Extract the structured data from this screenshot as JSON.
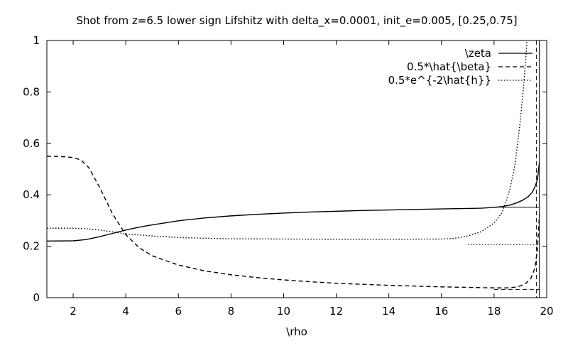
{
  "chart_data": {
    "type": "line",
    "title": "Shot from z=6.5 lower sign Lifshitz with delta_x=0.0001, init_e=0.005, [0.25,0.75]",
    "xlabel": "\\rho",
    "ylabel": "",
    "xlim": [
      1,
      20
    ],
    "ylim": [
      0,
      1
    ],
    "xticks": [
      "2",
      "4",
      "6",
      "8",
      "10",
      "12",
      "14",
      "16",
      "18",
      "20"
    ],
    "yticks": [
      "0",
      "0.2",
      "0.4",
      "0.6",
      "0.8",
      "1"
    ],
    "grid": false,
    "legend_position": "top-right",
    "series": [
      {
        "name": "\\zeta",
        "style": "solid",
        "x": [
          1.0,
          2.0,
          2.5,
          3.0,
          3.5,
          4.0,
          4.5,
          5.0,
          6.0,
          7.0,
          8.0,
          9.0,
          10.0,
          11.0,
          12.0,
          13.0,
          14.0,
          15.0,
          16.0,
          17.0,
          17.5,
          18.0,
          18.3,
          18.6,
          18.9,
          19.1,
          19.3,
          19.45,
          19.55,
          19.65,
          19.72
        ],
        "y": [
          0.22,
          0.221,
          0.226,
          0.237,
          0.25,
          0.263,
          0.274,
          0.283,
          0.299,
          0.31,
          0.318,
          0.324,
          0.329,
          0.333,
          0.336,
          0.339,
          0.341,
          0.343,
          0.345,
          0.347,
          0.348,
          0.351,
          0.354,
          0.36,
          0.37,
          0.38,
          0.393,
          0.41,
          0.43,
          0.46,
          0.525
        ]
      },
      {
        "name": "0.5*\\hat{\\beta}",
        "style": "dashed",
        "x": [
          1.0,
          1.5,
          2.0,
          2.3,
          2.6,
          3.0,
          3.5,
          4.0,
          4.5,
          5.0,
          6.0,
          7.0,
          8.0,
          9.0,
          10.0,
          11.0,
          12.0,
          13.0,
          14.0,
          15.0,
          16.0,
          17.0,
          18.0,
          18.5,
          18.9,
          19.2,
          19.4,
          19.55,
          19.65,
          19.72
        ],
        "y": [
          0.55,
          0.549,
          0.545,
          0.535,
          0.505,
          0.43,
          0.325,
          0.245,
          0.195,
          0.163,
          0.127,
          0.104,
          0.089,
          0.078,
          0.069,
          0.062,
          0.056,
          0.052,
          0.048,
          0.045,
          0.042,
          0.04,
          0.038,
          0.038,
          0.042,
          0.055,
          0.075,
          0.115,
          0.19,
          0.32
        ]
      },
      {
        "name": "0.5*e^{-2\\hat{h}}",
        "style": "dotted",
        "x": [
          1.0,
          2.0,
          2.5,
          3.0,
          3.5,
          4.0,
          5.0,
          6.0,
          7.0,
          8.0,
          10.0,
          12.0,
          14.0,
          16.0,
          16.5,
          17.0,
          17.5,
          18.0,
          18.3,
          18.6,
          18.8,
          19.0,
          19.1,
          19.2,
          19.25
        ],
        "y": [
          0.27,
          0.27,
          0.268,
          0.263,
          0.256,
          0.248,
          0.24,
          0.234,
          0.231,
          0.229,
          0.228,
          0.227,
          0.227,
          0.228,
          0.231,
          0.24,
          0.256,
          0.29,
          0.33,
          0.42,
          0.52,
          0.69,
          0.8,
          0.92,
          1.0
        ]
      }
    ],
    "reference_lines": [
      {
        "style": "solid",
        "x_from": 18.0,
        "x_to": 19.72,
        "y": 0.352
      },
      {
        "style": "dashed",
        "x_from": 18.0,
        "x_to": 19.72,
        "y": 0.032
      },
      {
        "style": "dotted",
        "x_from": 17.0,
        "x_to": 19.72,
        "y": 0.206
      }
    ]
  }
}
